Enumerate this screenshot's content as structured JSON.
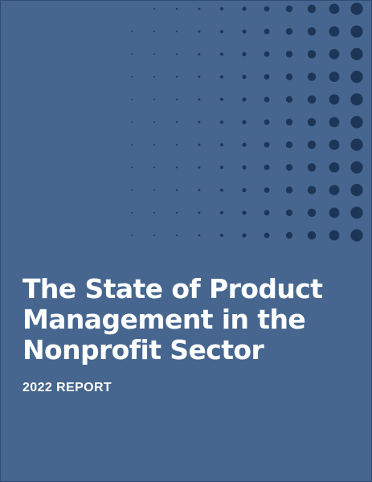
{
  "cover": {
    "title_lines": [
      "The State of Product",
      "Management in the",
      "Nonprofit Sector"
    ],
    "subtitle": "2022 REPORT"
  },
  "colors": {
    "background": "#46668f",
    "dots": "#1d3557",
    "text": "#ffffff"
  }
}
